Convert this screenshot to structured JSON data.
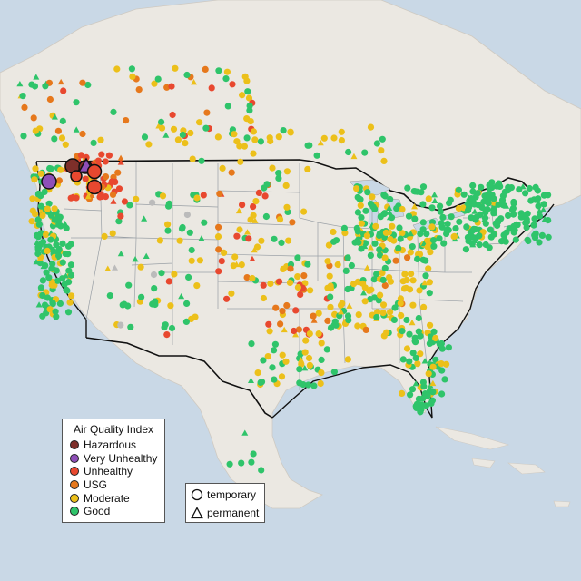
{
  "legend": {
    "title": "Air Quality Index",
    "categories": [
      {
        "label": "Hazardous",
        "color": "#7e2f2a"
      },
      {
        "label": "Very Unhealthy",
        "color": "#8e4fb8"
      },
      {
        "label": "Unhealthy",
        "color": "#e8482f"
      },
      {
        "label": "USG",
        "color": "#e6781c"
      },
      {
        "label": "Moderate",
        "color": "#ecc01a"
      },
      {
        "label": "Good",
        "color": "#2fc46a"
      }
    ]
  },
  "monitor_legend": {
    "items": [
      {
        "label": "temporary",
        "icon": "circle-icon"
      },
      {
        "label": "permanent",
        "icon": "triangle-icon"
      }
    ]
  },
  "colors": {
    "ocean": "#c9d8e6",
    "land": "#ebe8e2",
    "border": "#9aa0a6",
    "country_border": "#111111",
    "no_data": "#bbbbbb"
  }
}
